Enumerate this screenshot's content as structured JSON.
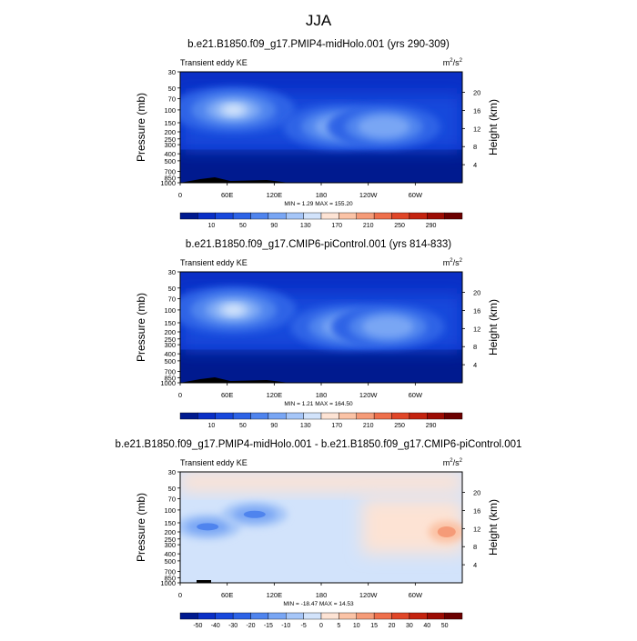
{
  "main_title": "JJA",
  "palette": {
    "kinetic": [
      "#001a8f",
      "#0a2fc6",
      "#1848dc",
      "#2d63e6",
      "#4f84ee",
      "#79a6f4",
      "#a6c6f8",
      "#d2e3fb",
      "#fde3d4",
      "#fbc3a6",
      "#f59b78",
      "#ee6f4b",
      "#e04628",
      "#c4230f",
      "#9c0c04",
      "#6b0000"
    ],
    "difference": [
      "#001a8f",
      "#0a2fc6",
      "#1848dc",
      "#2d63e6",
      "#4f84ee",
      "#79a6f4",
      "#a6c6f8",
      "#d2e3fb",
      "#fde3d4",
      "#fbc3a6",
      "#f59b78",
      "#ee6f4b",
      "#e04628",
      "#c4230f",
      "#9c0c04",
      "#6b0000"
    ]
  },
  "axis_labels": {
    "pressure": "Pressure (mb)",
    "height": "Height (km)"
  },
  "chart_data": [
    {
      "type": "heatmap",
      "title": "b.e21.B1850.f09_g17.PMIP4-midHolo.001 (yrs 290-309)",
      "left_label": "Transient eddy KE",
      "units_base": "m",
      "units_exp": "2",
      "units_tail": "/s",
      "units_tail_exp": "2",
      "stats": "MIN =   1.29  MAX = 155.20",
      "min": 1.29,
      "max": 155.2,
      "xlabel": "",
      "ylabel": "Pressure (mb)",
      "y2label": "Height (km)",
      "xlim": [
        0,
        360
      ],
      "pressure_ticks": [
        30,
        50,
        70,
        100,
        150,
        200,
        250,
        300,
        400,
        500,
        700,
        850,
        1000
      ],
      "pressure_tick_labels": [
        "30",
        "50",
        "70",
        "100",
        "150",
        "200",
        "250",
        "300",
        "400",
        "500",
        "700",
        "850",
        "1000"
      ],
      "height_ticks": [
        4,
        8,
        12,
        16,
        20
      ],
      "height_tick_labels": [
        "4",
        "8",
        "12",
        "16",
        "20"
      ],
      "lon_ticks": [
        0,
        60,
        120,
        180,
        240,
        300
      ],
      "lon_tick_labels": [
        "0",
        "60E",
        "120E",
        "180",
        "120W",
        "60W"
      ],
      "colorbar_labels": [
        "10",
        "50",
        "90",
        "130",
        "170",
        "210",
        "250",
        "290"
      ],
      "colorbar_levels": [
        10,
        50,
        90,
        130,
        170,
        210,
        250,
        290
      ],
      "features": [
        {
          "lon": 68,
          "p": 100,
          "peak": 155
        },
        {
          "lon": 205,
          "p": 170,
          "peak": 120
        },
        {
          "lon": 260,
          "p": 170,
          "peak": 110
        }
      ]
    },
    {
      "type": "heatmap",
      "title": "b.e21.B1850.f09_g17.CMIP6-piControl.001 (yrs 814-833)",
      "left_label": "Transient eddy KE",
      "units_base": "m",
      "units_exp": "2",
      "units_tail": "/s",
      "units_tail_exp": "2",
      "stats": "MIN =   1.21  MAX = 164.50",
      "min": 1.21,
      "max": 164.5,
      "xlabel": "",
      "ylabel": "Pressure (mb)",
      "y2label": "Height (km)",
      "xlim": [
        0,
        360
      ],
      "pressure_ticks": [
        30,
        50,
        70,
        100,
        150,
        200,
        250,
        300,
        400,
        500,
        700,
        850,
        1000
      ],
      "pressure_tick_labels": [
        "30",
        "50",
        "70",
        "100",
        "150",
        "200",
        "250",
        "300",
        "400",
        "500",
        "700",
        "850",
        "1000"
      ],
      "height_ticks": [
        4,
        8,
        12,
        16,
        20
      ],
      "height_tick_labels": [
        "4",
        "8",
        "12",
        "16",
        "20"
      ],
      "lon_ticks": [
        0,
        60,
        120,
        180,
        240,
        300
      ],
      "lon_tick_labels": [
        "0",
        "60E",
        "120E",
        "180",
        "120W",
        "60W"
      ],
      "colorbar_labels": [
        "10",
        "50",
        "90",
        "130",
        "170",
        "210",
        "250",
        "290"
      ],
      "colorbar_levels": [
        10,
        50,
        90,
        130,
        170,
        210,
        250,
        290
      ],
      "features": [
        {
          "lon": 68,
          "p": 100,
          "peak": 164
        },
        {
          "lon": 215,
          "p": 170,
          "peak": 125
        },
        {
          "lon": 265,
          "p": 170,
          "peak": 110
        }
      ]
    },
    {
      "type": "heatmap",
      "title": "b.e21.B1850.f09_g17.PMIP4-midHolo.001 - b.e21.B1850.f09_g17.CMIP6-piControl.001",
      "left_label": "Transient eddy KE",
      "units_base": "m",
      "units_exp": "2",
      "units_tail": "/s",
      "units_tail_exp": "2",
      "stats": "MIN = -18.47  MAX =  14.53",
      "min": -18.47,
      "max": 14.53,
      "xlabel": "",
      "ylabel": "Pressure (mb)",
      "y2label": "Height (km)",
      "xlim": [
        0,
        360
      ],
      "pressure_ticks": [
        30,
        50,
        70,
        100,
        150,
        200,
        250,
        300,
        400,
        500,
        700,
        850,
        1000
      ],
      "pressure_tick_labels": [
        "30",
        "50",
        "70",
        "100",
        "150",
        "200",
        "250",
        "300",
        "400",
        "500",
        "700",
        "850",
        "1000"
      ],
      "height_ticks": [
        4,
        8,
        12,
        16,
        20
      ],
      "height_tick_labels": [
        "4",
        "8",
        "12",
        "16",
        "20"
      ],
      "lon_ticks": [
        0,
        60,
        120,
        180,
        240,
        300
      ],
      "lon_tick_labels": [
        "0",
        "60E",
        "120E",
        "180",
        "120W",
        "60W"
      ],
      "colorbar_labels": [
        "-50",
        "-40",
        "-30",
        "-20",
        "-15",
        "-10",
        "-5",
        "0",
        "5",
        "10",
        "15",
        "20",
        "30",
        "40",
        "50"
      ],
      "colorbar_levels": [
        -50,
        -40,
        -30,
        -20,
        -15,
        -10,
        -5,
        0,
        5,
        10,
        15,
        20,
        30,
        40,
        50
      ],
      "features": [
        {
          "lon": 35,
          "p": 170,
          "peak": -12
        },
        {
          "lon": 95,
          "p": 115,
          "peak": -18
        },
        {
          "lon": 340,
          "p": 200,
          "peak": 14
        }
      ]
    }
  ]
}
